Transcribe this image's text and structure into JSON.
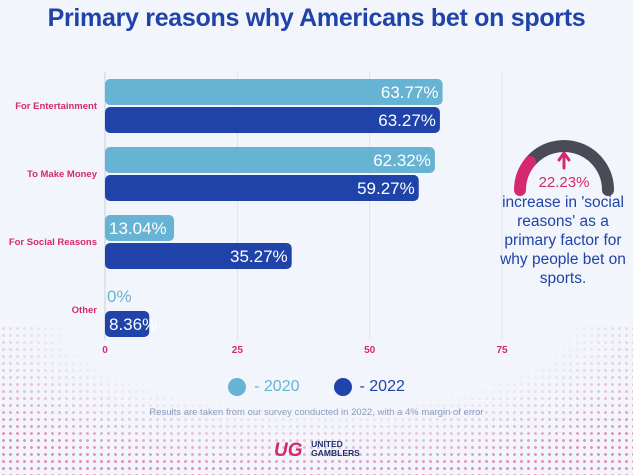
{
  "title": "Primary reasons why Americans bet on sports",
  "colors": {
    "series_2020": "#66b3d3",
    "series_2022": "#1f43a8",
    "accent": "#d6286e",
    "gauge_track": "#4b4b55"
  },
  "chart_data": {
    "type": "bar",
    "orientation": "horizontal",
    "title": "Primary reasons why Americans bet on sports",
    "categories": [
      "For Entertainment",
      "To Make Money",
      "For Social Reasons",
      "Other"
    ],
    "series": [
      {
        "name": "- 2020",
        "values": [
          63.77,
          62.32,
          13.04,
          0
        ],
        "labels": [
          "63.77%",
          "62.32%",
          "13.04%",
          "0%"
        ]
      },
      {
        "name": "- 2022",
        "values": [
          63.27,
          59.27,
          35.27,
          8.36
        ],
        "labels": [
          "63.27%",
          "59.27%",
          "35.27%",
          "8.36%"
        ]
      }
    ],
    "xlim": [
      0,
      75
    ],
    "xticks": [
      "0",
      "25",
      "50",
      "75"
    ],
    "grid": true,
    "legend": "bottom"
  },
  "callout": {
    "value": "22.23%",
    "gauge_fraction": 0.22,
    "text": "increase in 'social reasons' as a primary factor for why people bet on sports."
  },
  "legend": {
    "items": [
      {
        "label": "- 2020",
        "color": "#66b3d3"
      },
      {
        "label": "- 2022",
        "color": "#1f43a8"
      }
    ]
  },
  "note": "Results are taken from our survey conducted in 2022, with a 4% margin of error",
  "logo": {
    "mark": "UG",
    "line1": "UNITED",
    "line2": "GAMBLERS"
  }
}
